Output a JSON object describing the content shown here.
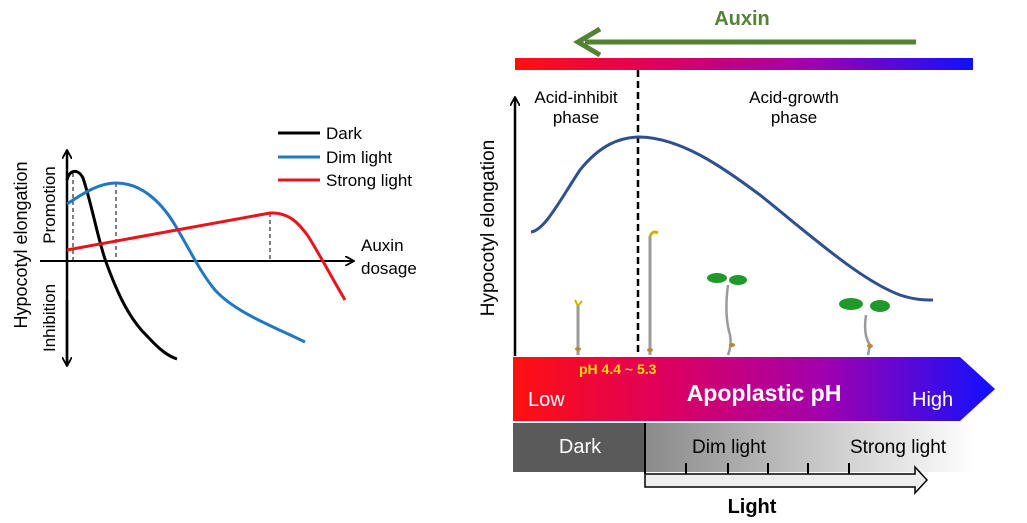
{
  "left_panel": {
    "y_axis_label": "Hypocotyl elongation",
    "promotion_label": "Promotion",
    "inhibition_label": "Inhibition",
    "x_axis_label_line1": "Auxin",
    "x_axis_label_line2": "dosage",
    "legend": [
      {
        "label": "Dark",
        "color": "#000000"
      },
      {
        "label": "Dim light",
        "color": "#1f78c1"
      },
      {
        "label": "Strong light",
        "color": "#e8141b"
      }
    ]
  },
  "right_panel": {
    "auxin_label": "Auxin",
    "auxin_color": "#548235",
    "y_axis_label": "Hypocotyl elongation",
    "phase_left_line1": "Acid-inhibit",
    "phase_left_line2": "phase",
    "phase_right_line1": "Acid-growth",
    "phase_right_line2": "phase",
    "curve_color": "#2f4f8f",
    "ph_range": "pH 4.4 ~ 5.3",
    "ph_low": "Low",
    "ph_title": "Apoplastic pH",
    "ph_high": "High",
    "dark_label": "Dark",
    "dim_light_label": "Dim light",
    "strong_light_label": "Strong light",
    "light_label": "Light"
  }
}
